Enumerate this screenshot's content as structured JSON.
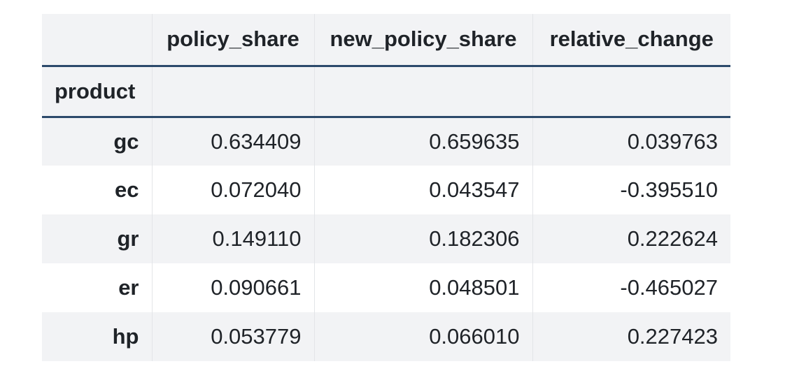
{
  "table": {
    "columns": [
      "policy_share",
      "new_policy_share",
      "relative_change"
    ],
    "index_name": "product",
    "rows": [
      {
        "index": "gc",
        "values": [
          "0.634409",
          "0.659635",
          "0.039763"
        ]
      },
      {
        "index": "ec",
        "values": [
          "0.072040",
          "0.043547",
          "-0.395510"
        ]
      },
      {
        "index": "gr",
        "values": [
          "0.149110",
          "0.182306",
          "0.222624"
        ]
      },
      {
        "index": "er",
        "values": [
          "0.090661",
          "0.048501",
          "-0.465027"
        ]
      },
      {
        "index": "hp",
        "values": [
          "0.053779",
          "0.066010",
          "0.227423"
        ]
      }
    ]
  },
  "colors": {
    "header_background": "#f2f3f5",
    "rule": "#2c4a6b",
    "stripe": "#f2f3f5"
  }
}
